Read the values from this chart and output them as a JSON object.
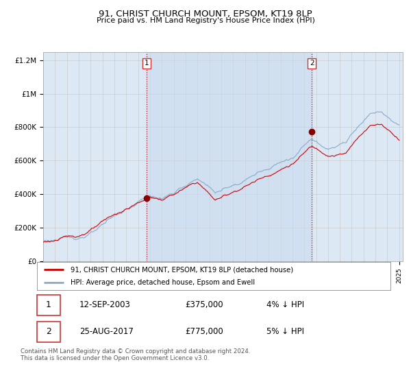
{
  "title": "91, CHRIST CHURCH MOUNT, EPSOM, KT19 8LP",
  "subtitle": "Price paid vs. HM Land Registry's House Price Index (HPI)",
  "background_color": "#ffffff",
  "plot_bg_color": "#dce9f5",
  "x_start_year": 1995,
  "x_end_year": 2025,
  "y_min": 0,
  "y_max": 1250000,
  "y_ticks": [
    0,
    200000,
    400000,
    600000,
    800000,
    1000000,
    1200000
  ],
  "y_tick_labels": [
    "£0",
    "£200K",
    "£400K",
    "£600K",
    "£800K",
    "£1M",
    "£1.2M"
  ],
  "sale1_year": 2003.708,
  "sale1_price": 375000,
  "sale1_date": "12-SEP-2003",
  "sale1_hpi_pct": "4% ↓ HPI",
  "sale2_year": 2017.642,
  "sale2_price": 775000,
  "sale2_date": "25-AUG-2017",
  "sale2_hpi_pct": "5% ↓ HPI",
  "legend_line1": "91, CHRIST CHURCH MOUNT, EPSOM, KT19 8LP (detached house)",
  "legend_line2": "HPI: Average price, detached house, Epsom and Ewell",
  "footer": "Contains HM Land Registry data © Crown copyright and database right 2024.\nThis data is licensed under the Open Government Licence v3.0.",
  "line_red_color": "#cc0000",
  "line_blue_color": "#88aacc",
  "marker_color": "#880000",
  "vline_color": "#cc0000",
  "grid_color": "#cccccc",
  "span_color": "#c8d8ec",
  "span_alpha": 0.5
}
